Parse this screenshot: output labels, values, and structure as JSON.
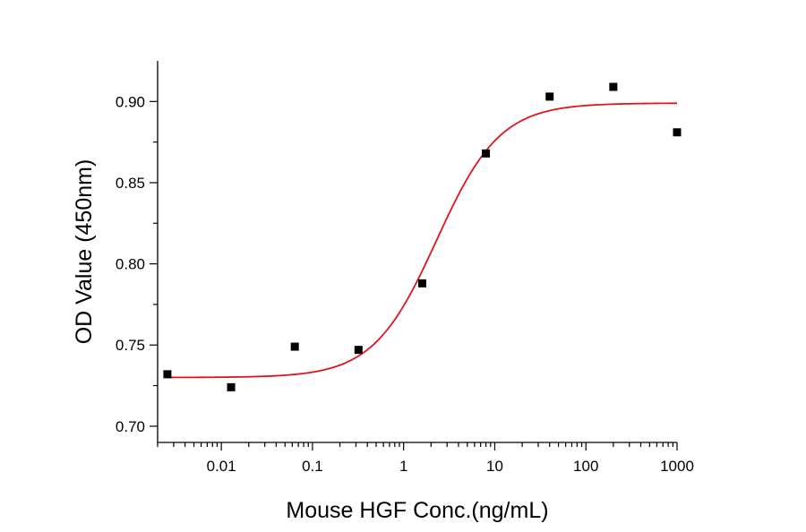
{
  "chart_data": {
    "type": "scatter",
    "title": "",
    "xlabel": "Mouse HGF Conc.(ng/mL)",
    "ylabel": "OD Value (450nm)",
    "x_scale": "log",
    "xlim": [
      0.002,
      1000
    ],
    "ylim": [
      0.69,
      0.925
    ],
    "x_ticks": [
      0.01,
      0.1,
      1,
      10,
      100,
      1000
    ],
    "x_tick_labels": [
      "0.01",
      "0.1",
      "1",
      "10",
      "100",
      "1000"
    ],
    "y_ticks": [
      0.7,
      0.75,
      0.8,
      0.85,
      0.9
    ],
    "y_tick_labels": [
      "0.70",
      "0.75",
      "0.80",
      "0.85",
      "0.90"
    ],
    "grid": false,
    "legend": "none",
    "points": {
      "x": [
        0.00256,
        0.0128,
        0.064,
        0.32,
        1.6,
        8,
        40,
        200,
        1000
      ],
      "y": [
        0.732,
        0.724,
        0.749,
        0.747,
        0.788,
        0.868,
        0.903,
        0.909,
        0.881
      ],
      "color": "#000000",
      "marker": "square"
    },
    "fit": {
      "model": "4PL",
      "bottom": 0.73,
      "top": 0.899,
      "ec50": 2.3,
      "hill": 1.25,
      "color": "#e0141e"
    }
  }
}
